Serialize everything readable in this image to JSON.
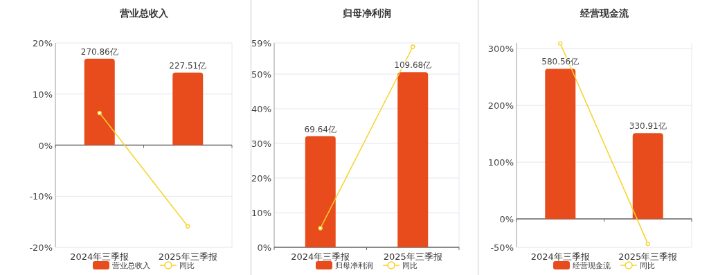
{
  "chart_data": [
    {
      "type": "bar",
      "title": "营业总收入",
      "categories": [
        "2024年三季报",
        "2025年三季报"
      ],
      "series": [
        {
          "name": "营业总收入",
          "type": "bar",
          "axis": "y2",
          "color": "#e84c1c",
          "values": [
            270.86,
            227.51
          ],
          "value_labels": [
            "270.86亿",
            "227.51亿"
          ]
        },
        {
          "name": "同比",
          "type": "line",
          "color": "#f5d327",
          "values": [
            6.3,
            -15.9
          ]
        }
      ],
      "ylim": [
        -20,
        20
      ],
      "yticks": [
        {
          "value": -20,
          "label": "-20%"
        },
        {
          "value": -10,
          "label": "-10%"
        },
        {
          "value": 0,
          "label": "0%"
        },
        {
          "value": 10,
          "label": "10%"
        },
        {
          "value": 20,
          "label": "20%"
        }
      ],
      "y2lim": [
        -320,
        320
      ],
      "grid": "y",
      "legend": "bottom",
      "marker": "circle"
    },
    {
      "type": "bar",
      "title": "归母净利润",
      "categories": [
        "2024年三季报",
        "2025年三季报"
      ],
      "series": [
        {
          "name": "归母净利润",
          "type": "bar",
          "axis": "y2",
          "color": "#e84c1c",
          "values": [
            69.64,
            109.68
          ],
          "value_labels": [
            "69.64亿",
            "109.68亿"
          ]
        },
        {
          "name": "同比",
          "type": "line",
          "color": "#f5d327",
          "values": [
            5.5,
            57.9
          ]
        }
      ],
      "ylim": [
        0,
        59
      ],
      "yticks": [
        {
          "value": 0,
          "label": "0%"
        },
        {
          "value": 10,
          "label": "10%"
        },
        {
          "value": 20,
          "label": "20%"
        },
        {
          "value": 30,
          "label": "30%"
        },
        {
          "value": 40,
          "label": "40%"
        },
        {
          "value": 50,
          "label": "50%"
        },
        {
          "value": 59,
          "label": "59%"
        }
      ],
      "y2lim": [
        0,
        128
      ],
      "grid": "y",
      "legend": "bottom",
      "marker": "circle"
    },
    {
      "type": "bar",
      "title": "经营现金流",
      "categories": [
        "2024年三季报",
        "2025年三季报"
      ],
      "series": [
        {
          "name": "经营现金流",
          "type": "bar",
          "axis": "y2",
          "color": "#e84c1c",
          "values": [
            580.56,
            330.91
          ],
          "value_labels": [
            "580.56亿",
            "330.91亿"
          ]
        },
        {
          "name": "同比",
          "type": "line",
          "color": "#f5d327",
          "values": [
            309,
            -44
          ]
        }
      ],
      "ylim": [
        -50,
        310
      ],
      "yticks": [
        {
          "value": -50,
          "label": "-50%"
        },
        {
          "value": 0,
          "label": "0%"
        },
        {
          "value": 100,
          "label": "100%"
        },
        {
          "value": 200,
          "label": "200%"
        },
        {
          "value": 300,
          "label": "300%"
        }
      ],
      "y2lim": [
        -110,
        680
      ],
      "grid": "y",
      "legend": "bottom",
      "marker": "circle"
    }
  ]
}
